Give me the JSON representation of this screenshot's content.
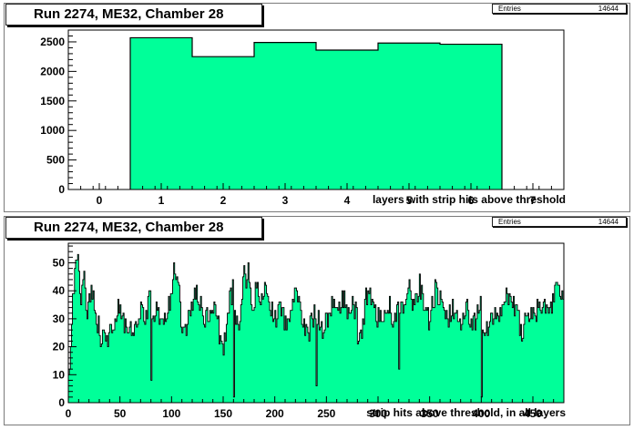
{
  "panels": [
    {
      "title": "Run 2274, ME32, Chamber 28",
      "stats": {
        "label": "Entries",
        "value": "14644"
      }
    },
    {
      "title": "Run 2274, ME32, Chamber 28",
      "stats": {
        "label": "Entries",
        "value": "14644"
      }
    }
  ],
  "colors": {
    "fill": "#00ff99",
    "line": "#000000"
  },
  "chart_data": [
    {
      "type": "bar",
      "title": "Run 2274, ME32, Chamber 28",
      "xlabel": "layers with strip hits above threshold",
      "ylabel": "",
      "xlim": [
        -0.5,
        7.5
      ],
      "ylim": [
        0,
        2700
      ],
      "xticks": [
        0,
        1,
        2,
        3,
        4,
        5,
        6,
        7
      ],
      "yticks": [
        0,
        500,
        1000,
        1500,
        2000,
        2500
      ],
      "categories": [
        "1",
        "2",
        "3",
        "4",
        "5",
        "6"
      ],
      "values": [
        2570,
        2250,
        2490,
        2360,
        2480,
        2460
      ],
      "entries": 14644,
      "grid": false
    },
    {
      "type": "area",
      "title": "Run 2274, ME32, Chamber 28",
      "xlabel": "strip hits above threshold, in all layers",
      "ylabel": "",
      "xlim": [
        0,
        480
      ],
      "ylim": [
        0,
        57
      ],
      "xticks": [
        0,
        50,
        100,
        150,
        200,
        250,
        300,
        350,
        400,
        450
      ],
      "yticks": [
        0,
        10,
        20,
        30,
        40,
        50
      ],
      "bins": 480,
      "anchors": [
        [
          0,
          10
        ],
        [
          3,
          30
        ],
        [
          6,
          44
        ],
        [
          9,
          51
        ],
        [
          12,
          38
        ],
        [
          15,
          46
        ],
        [
          18,
          30
        ],
        [
          22,
          40
        ],
        [
          26,
          34
        ],
        [
          30,
          24
        ],
        [
          35,
          22
        ],
        [
          40,
          25
        ],
        [
          45,
          30
        ],
        [
          50,
          36
        ],
        [
          55,
          26
        ],
        [
          60,
          27
        ],
        [
          65,
          28
        ],
        [
          70,
          34
        ],
        [
          75,
          32
        ],
        [
          79,
          38
        ],
        [
          80,
          8
        ],
        [
          81,
          30
        ],
        [
          85,
          36
        ],
        [
          90,
          28
        ],
        [
          95,
          33
        ],
        [
          100,
          40
        ],
        [
          103,
          50
        ],
        [
          106,
          42
        ],
        [
          110,
          26
        ],
        [
          115,
          28
        ],
        [
          120,
          35
        ],
        [
          125,
          40
        ],
        [
          130,
          32
        ],
        [
          135,
          30
        ],
        [
          140,
          34
        ],
        [
          145,
          27
        ],
        [
          148,
          22
        ],
        [
          150,
          18
        ],
        [
          155,
          34
        ],
        [
          159,
          40
        ],
        [
          160,
          2
        ],
        [
          161,
          32
        ],
        [
          165,
          28
        ],
        [
          170,
          45
        ],
        [
          174,
          46
        ],
        [
          178,
          30
        ],
        [
          182,
          42
        ],
        [
          186,
          34
        ],
        [
          190,
          40
        ],
        [
          195,
          35
        ],
        [
          200,
          30
        ],
        [
          205,
          34
        ],
        [
          210,
          28
        ],
        [
          215,
          32
        ],
        [
          220,
          40
        ],
        [
          225,
          32
        ],
        [
          230,
          24
        ],
        [
          235,
          28
        ],
        [
          239,
          33
        ],
        [
          240,
          6
        ],
        [
          241,
          30
        ],
        [
          245,
          25
        ],
        [
          250,
          28
        ],
        [
          255,
          34
        ],
        [
          260,
          30
        ],
        [
          265,
          40
        ],
        [
          270,
          32
        ],
        [
          275,
          36
        ],
        [
          279,
          30
        ],
        [
          280,
          20
        ],
        [
          285,
          28
        ],
        [
          290,
          42
        ],
        [
          295,
          34
        ],
        [
          300,
          30
        ],
        [
          305,
          32
        ],
        [
          310,
          35
        ],
        [
          315,
          30
        ],
        [
          319,
          35
        ],
        [
          320,
          12
        ],
        [
          321,
          34
        ],
        [
          325,
          36
        ],
        [
          330,
          40
        ],
        [
          335,
          34
        ],
        [
          340,
          42
        ],
        [
          345,
          32
        ],
        [
          350,
          30
        ],
        [
          355,
          40
        ],
        [
          360,
          36
        ],
        [
          365,
          28
        ],
        [
          370,
          32
        ],
        [
          375,
          35
        ],
        [
          379,
          30
        ],
        [
          380,
          25
        ],
        [
          385,
          34
        ],
        [
          390,
          28
        ],
        [
          395,
          30
        ],
        [
          399,
          35
        ],
        [
          400,
          2
        ],
        [
          401,
          30
        ],
        [
          405,
          26
        ],
        [
          410,
          28
        ],
        [
          415,
          34
        ],
        [
          420,
          32
        ],
        [
          425,
          40
        ],
        [
          430,
          36
        ],
        [
          435,
          30
        ],
        [
          440,
          24
        ],
        [
          445,
          32
        ],
        [
          450,
          30
        ],
        [
          455,
          34
        ],
        [
          460,
          35
        ],
        [
          465,
          28
        ],
        [
          470,
          40
        ],
        [
          474,
          46
        ],
        [
          477,
          34
        ],
        [
          479,
          40
        ]
      ],
      "grid": false
    }
  ]
}
